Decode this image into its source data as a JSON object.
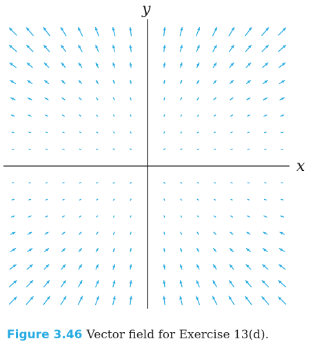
{
  "figure": {
    "x_axis_label": "x",
    "y_axis_label": "y",
    "arrow_color": "#29abe2",
    "field": {
      "formula": "F(x,y) = (x*y, y^2)",
      "grid_x": [
        -8,
        -7,
        -6,
        -5,
        -4,
        -3,
        -2,
        -1,
        1,
        2,
        3,
        4,
        5,
        6,
        7,
        8
      ],
      "grid_y": [
        -8,
        -7,
        -6,
        -5,
        -4,
        -3,
        -2,
        -1,
        1,
        2,
        3,
        4,
        5,
        6,
        7,
        8
      ]
    }
  },
  "caption": {
    "label": "Figure 3.46",
    "label_color": "#29abe2",
    "text": "Vector field for Exercise 13(d)."
  }
}
